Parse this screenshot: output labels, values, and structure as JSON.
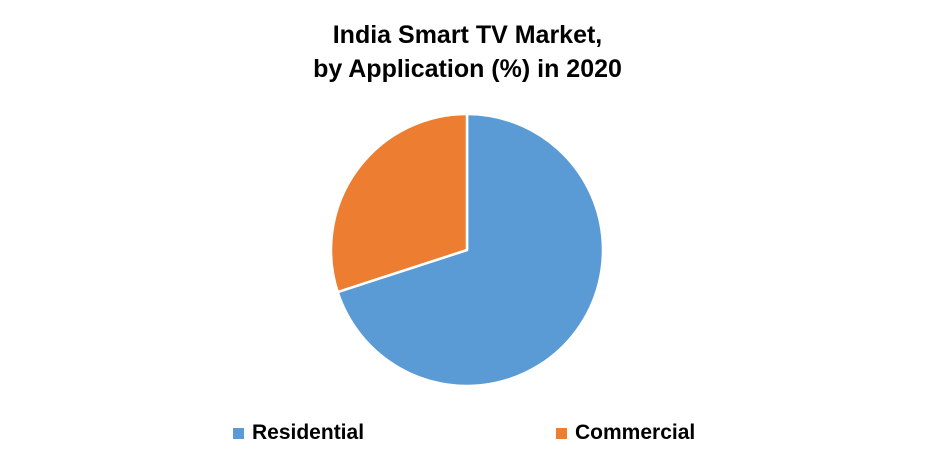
{
  "chart_data": {
    "type": "pie",
    "title_lines": [
      "India Smart TV Market,",
      "by Application (%) in 2020"
    ],
    "categories": [
      "Residential",
      "Commercial"
    ],
    "values": [
      70,
      30
    ],
    "colors": [
      "#5B9BD5",
      "#ED7D31"
    ],
    "legend_position": "bottom"
  }
}
